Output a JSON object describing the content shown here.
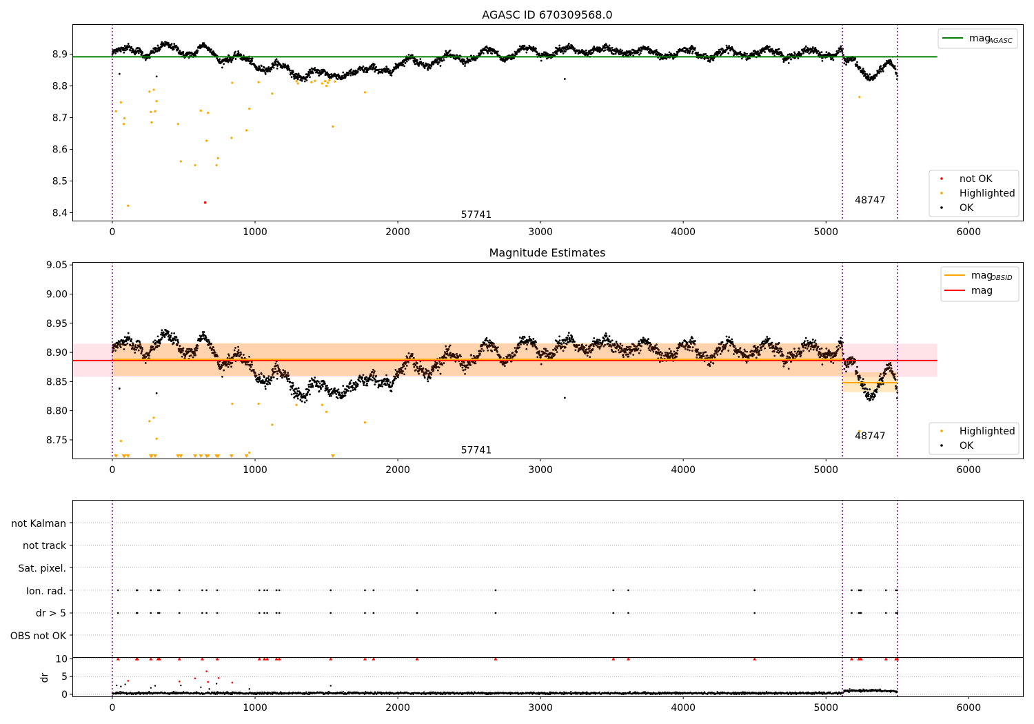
{
  "chart_data": [
    {
      "type": "scatter",
      "title": "AGASC ID 670309568.0",
      "xlim": [
        -280,
        6380
      ],
      "ylim": [
        8.375,
        8.995
      ],
      "xticks": [
        0,
        1000,
        2000,
        3000,
        4000,
        5000,
        6000
      ],
      "yticks": [
        8.4,
        8.5,
        8.6,
        8.7,
        8.8,
        8.9
      ],
      "obs_boundaries": [
        0,
        5115,
        5500
      ],
      "obs_labels": [
        {
          "text": "57741",
          "x": 2550,
          "y": 8.395
        },
        {
          "text": "48747",
          "x": 5310,
          "y": 8.44
        }
      ],
      "hline": {
        "name": "mag$_{AGASC}$",
        "display": "mag",
        "sub": "AGASC",
        "y": 8.892,
        "x": [
          -280,
          5780
        ],
        "color": "#008000"
      },
      "series": [
        {
          "name": "not OK",
          "color": "#ff0000",
          "points": [
            [
              650,
              8.432
            ]
          ]
        },
        {
          "name": "Highlighted",
          "color": "#ffa500",
          "points": [
            [
              25,
              8.72
            ],
            [
              60,
              8.748
            ],
            [
              80,
              8.68
            ],
            [
              85,
              8.698
            ],
            [
              110,
              8.422
            ],
            [
              260,
              8.782
            ],
            [
              270,
              8.718
            ],
            [
              275,
              8.685
            ],
            [
              290,
              8.788
            ],
            [
              300,
              8.72
            ],
            [
              310,
              8.752
            ],
            [
              460,
              8.68
            ],
            [
              480,
              8.562
            ],
            [
              580,
              8.55
            ],
            [
              620,
              8.722
            ],
            [
              660,
              8.627
            ],
            [
              670,
              8.715
            ],
            [
              730,
              8.55
            ],
            [
              740,
              8.572
            ],
            [
              835,
              8.636
            ],
            [
              840,
              8.81
            ],
            [
              940,
              8.66
            ],
            [
              960,
              8.728
            ],
            [
              1025,
              8.812
            ],
            [
              1120,
              8.776
            ],
            [
              1290,
              8.815
            ],
            [
              1300,
              8.808
            ],
            [
              1395,
              8.812
            ],
            [
              1420,
              8.816
            ],
            [
              1470,
              8.808
            ],
            [
              1490,
              8.815
            ],
            [
              1500,
              8.8
            ],
            [
              1510,
              8.81
            ],
            [
              1520,
              8.818
            ],
            [
              1545,
              8.672
            ],
            [
              1560,
              8.814
            ],
            [
              1770,
              8.78
            ],
            [
              5235,
              8.765
            ]
          ]
        },
        {
          "name": "OK",
          "color": "#000000",
          "trend": [
            [
              0,
              8.902
            ],
            [
              80,
              8.908
            ],
            [
              180,
              8.92
            ],
            [
              260,
              8.9
            ],
            [
              330,
              8.912
            ],
            [
              420,
              8.925
            ],
            [
              480,
              8.918
            ],
            [
              560,
              8.898
            ],
            [
              650,
              8.918
            ],
            [
              700,
              8.905
            ],
            [
              760,
              8.888
            ],
            [
              840,
              8.895
            ],
            [
              900,
              8.882
            ],
            [
              980,
              8.868
            ],
            [
              1050,
              8.862
            ],
            [
              1150,
              8.865
            ],
            [
              1250,
              8.84
            ],
            [
              1320,
              8.832
            ],
            [
              1400,
              8.85
            ],
            [
              1500,
              8.825
            ],
            [
              1580,
              8.835
            ],
            [
              1650,
              8.848
            ],
            [
              1760,
              8.838
            ],
            [
              1850,
              8.858
            ],
            [
              2000,
              8.855
            ],
            [
              2100,
              8.885
            ],
            [
              2250,
              8.872
            ],
            [
              2400,
              8.892
            ],
            [
              2550,
              8.888
            ],
            [
              2650,
              8.908
            ],
            [
              2750,
              8.895
            ],
            [
              2900,
              8.912
            ],
            [
              3000,
              8.905
            ],
            [
              3200,
              8.91
            ],
            [
              3350,
              8.915
            ],
            [
              3500,
              8.905
            ],
            [
              3600,
              8.915
            ],
            [
              3800,
              8.9
            ],
            [
              4000,
              8.905
            ],
            [
              4200,
              8.9
            ],
            [
              4400,
              8.905
            ],
            [
              4600,
              8.905
            ],
            [
              4800,
              8.9
            ],
            [
              5000,
              8.905
            ],
            [
              5110,
              8.908
            ],
            [
              5130,
              8.872
            ],
            [
              5200,
              8.872
            ],
            [
              5280,
              8.84
            ],
            [
              5350,
              8.835
            ],
            [
              5420,
              8.862
            ],
            [
              5480,
              8.855
            ],
            [
              5500,
              8.83
            ]
          ],
          "noise": 0.01,
          "outliers": [
            [
              50,
              8.838
            ],
            [
              310,
              8.83
            ],
            [
              3170,
              8.822
            ]
          ]
        }
      ],
      "legend_lines": [
        "mag$_{AGASC}$"
      ],
      "legend_points": [
        "not OK",
        "Highlighted",
        "OK"
      ]
    },
    {
      "type": "scatter",
      "title": "Magnitude Estimates",
      "xlim": [
        -280,
        6380
      ],
      "ylim": [
        8.718,
        9.055
      ],
      "xticks": [
        0,
        1000,
        2000,
        3000,
        4000,
        5000,
        6000
      ],
      "yticks": [
        8.75,
        8.8,
        8.85,
        8.9,
        8.95,
        9.0,
        9.05
      ],
      "obs_boundaries": [
        0,
        5115,
        5500
      ],
      "obs_labels": [
        {
          "text": "57741",
          "x": 2550,
          "y": 8.733
        },
        {
          "text": "48747",
          "x": 5310,
          "y": 8.757
        }
      ],
      "mag_line": {
        "name": "mag",
        "y": 8.886,
        "x": [
          -280,
          5780
        ],
        "color": "#ff0000",
        "band": [
          8.858,
          8.915
        ]
      },
      "mag_obsid": [
        {
          "name": "mag$_{OBSID}$",
          "display": "mag",
          "sub": "OBSID",
          "x": [
            0,
            5115
          ],
          "y": 8.888,
          "band": [
            8.86,
            8.916
          ]
        },
        {
          "x": [
            5115,
            5500
          ],
          "y": 8.848,
          "band": [
            8.832,
            8.866
          ]
        }
      ],
      "series": [
        {
          "name": "Highlighted",
          "color": "#ffa500",
          "points": [
            [
              60,
              8.748
            ],
            [
              260,
              8.782
            ],
            [
              290,
              8.788
            ],
            [
              310,
              8.752
            ],
            [
              840,
              8.812
            ],
            [
              960,
              8.728
            ],
            [
              1025,
              8.812
            ],
            [
              1120,
              8.776
            ],
            [
              1290,
              8.81
            ],
            [
              1470,
              8.81
            ],
            [
              1500,
              8.798
            ],
            [
              1770,
              8.78
            ],
            [
              5235,
              8.765
            ]
          ],
          "clipped_x": [
            25,
            80,
            85,
            110,
            270,
            275,
            300,
            460,
            480,
            580,
            620,
            660,
            670,
            730,
            740,
            835,
            940,
            1545
          ]
        },
        {
          "name": "OK",
          "color": "#000000",
          "trend_ref": 0
        }
      ],
      "legend_lines": [
        "mag$_{OBSID}$",
        "mag"
      ],
      "legend_points": [
        "Highlighted",
        "OK"
      ]
    },
    {
      "type": "scatter",
      "title": "",
      "xlim": [
        -280,
        6380
      ],
      "categories": [
        "not Kalman",
        "not track",
        "Sat. pixel.",
        "Ion. rad.",
        "dr > 5",
        "OBS not OK"
      ],
      "obs_boundaries": [
        0,
        5115,
        5500
      ],
      "flag_times": {
        "Ion. rad.": [
          40,
          170,
          175,
          270,
          320,
          330,
          470,
          630,
          660,
          735,
          1030,
          1065,
          1085,
          1150,
          1170,
          1530,
          1770,
          1830,
          2135,
          2685,
          3510,
          3615,
          4500,
          5180,
          5230,
          5240,
          5245,
          5420,
          5490,
          5500
        ],
        "dr > 5": [
          40,
          170,
          175,
          270,
          320,
          330,
          470,
          630,
          660,
          735,
          1030,
          1065,
          1085,
          1150,
          1170,
          1530,
          1770,
          1830,
          2135,
          2685,
          3510,
          3615,
          4500,
          5180,
          5230,
          5240,
          5245,
          5420,
          5490,
          5500
        ]
      }
    },
    {
      "type": "scatter",
      "ylabel": "dr",
      "xlim": [
        -280,
        6380
      ],
      "ylim": [
        -0.6,
        10.5
      ],
      "yticks": [
        0,
        5,
        10
      ],
      "xticks": [
        0,
        1000,
        2000,
        3000,
        4000,
        5000,
        6000
      ],
      "obs_boundaries": [
        0,
        5115,
        5500
      ],
      "clipped_x": [
        40,
        170,
        175,
        270,
        320,
        330,
        470,
        630,
        735,
        1030,
        1065,
        1085,
        1150,
        1170,
        1530,
        1770,
        1830,
        2135,
        2685,
        3510,
        3615,
        4500,
        5180,
        5230,
        5245,
        5420,
        5490,
        5500
      ],
      "red_points": [
        [
          110,
          3.8
        ],
        [
          470,
          3.6
        ],
        [
          580,
          4.5
        ],
        [
          660,
          6.5
        ],
        [
          670,
          3.5
        ],
        [
          745,
          4.6
        ],
        [
          840,
          3.3
        ]
      ],
      "black_points": [
        [
          30,
          2.5
        ],
        [
          60,
          2.2
        ],
        [
          90,
          2.8
        ],
        [
          270,
          1.8
        ],
        [
          300,
          2.4
        ],
        [
          480,
          2.5
        ],
        [
          620,
          2.0
        ],
        [
          680,
          1.5
        ],
        [
          730,
          3.0
        ],
        [
          960,
          1.5
        ],
        [
          1530,
          2.4
        ]
      ],
      "baseline": [
        [
          0,
          0.3
        ],
        [
          5115,
          0.3
        ],
        [
          5130,
          0.9
        ],
        [
          5300,
          1.1
        ],
        [
          5500,
          0.8
        ]
      ]
    }
  ]
}
